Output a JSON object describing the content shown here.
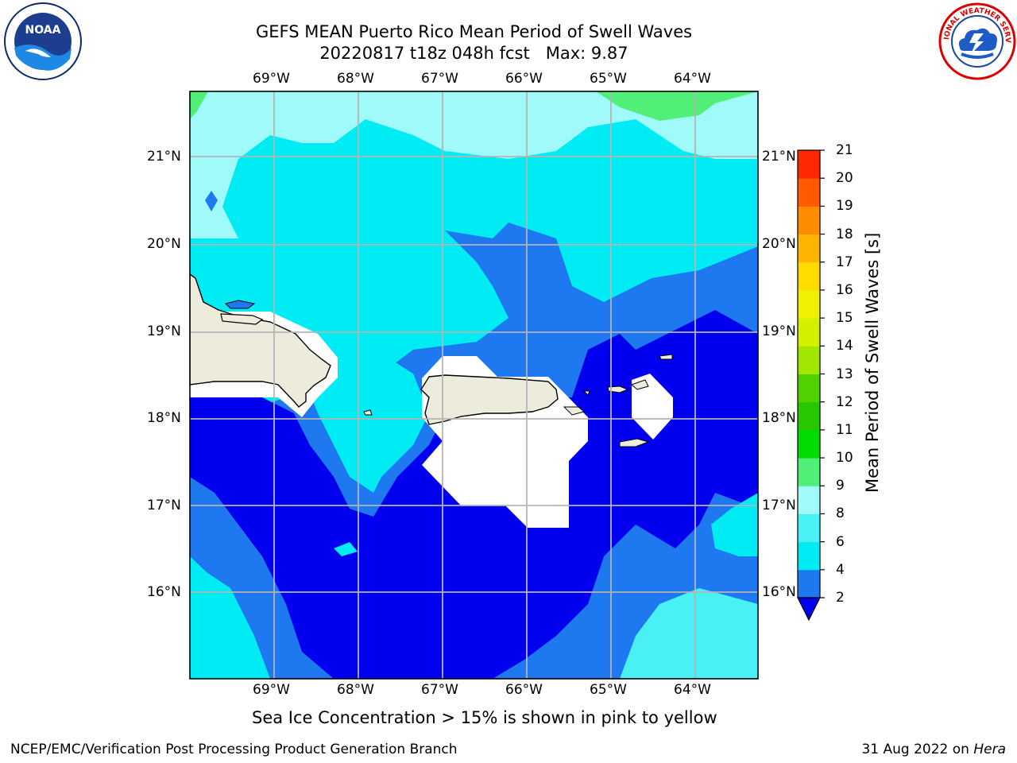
{
  "title": {
    "line1": "GEFS MEAN Puerto Rico Mean Period of Swell Waves",
    "line2": "20220817 t18z 048h fcst   Max: 9.87"
  },
  "logos": {
    "left": {
      "name": "NOAA",
      "text": "NOAA"
    },
    "right": {
      "name": "National Weather Service",
      "text": "NATIONAL WEATHER SERVICE"
    }
  },
  "map": {
    "lon_labels": [
      "69°W",
      "68°W",
      "67°W",
      "66°W",
      "65°W",
      "64°W"
    ],
    "lat_labels": [
      "21°N",
      "20°N",
      "19°N",
      "18°N",
      "17°N",
      "16°N"
    ],
    "land_color": "#ecebdc",
    "water_colors": {
      "deep_blue": "#0000ee",
      "blue": "#1e78f0",
      "cyan": "#00ecf4",
      "light_cyan": "#49f0f4",
      "pale_cyan": "#a0fafa",
      "green": "#50f078"
    }
  },
  "colorbar": {
    "label": "Mean Period of Swell Waves [s]",
    "ticks": [
      "2",
      "4",
      "6",
      "8",
      "9",
      "10",
      "11",
      "12",
      "13",
      "14",
      "15",
      "16",
      "17",
      "18",
      "19",
      "20",
      "21"
    ],
    "colors": [
      "#1e78f0",
      "#00ecf4",
      "#49f0f4",
      "#a0fafa",
      "#50f078",
      "#00dc00",
      "#28c800",
      "#50d200",
      "#a0e600",
      "#d2f000",
      "#f0f000",
      "#ffdc00",
      "#ffb400",
      "#ff8c00",
      "#ff5a00",
      "#ff2800",
      "#ff0000"
    ],
    "under_color": "#0000ee"
  },
  "caption": "Sea Ice Concentration > 15% is shown in pink to yellow",
  "footer": {
    "left": "NCEP/EMC/Verification Post Processing Product Generation Branch",
    "right_prefix": "31 Aug 2022 on ",
    "right_italic": "Hera"
  }
}
